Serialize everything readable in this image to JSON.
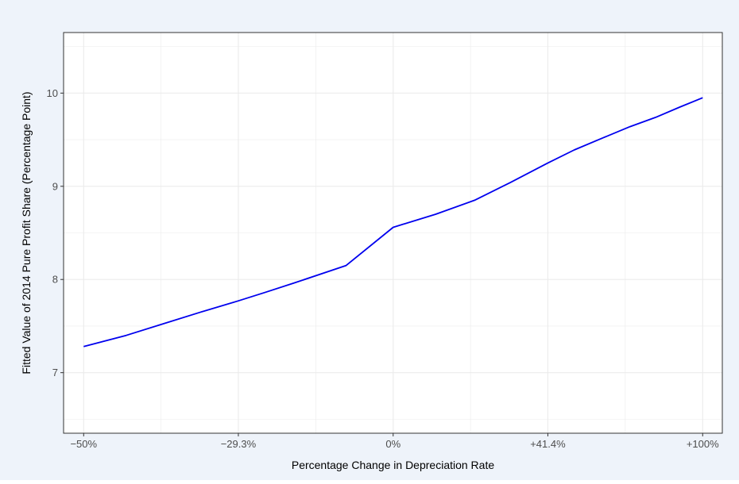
{
  "colors": {
    "background": "#eef3fa",
    "panel": "#ffffff",
    "grid": "#ebebeb",
    "line": "#0000ee",
    "text": "#4d4d4d",
    "axis_title": "#000000"
  },
  "chart_data": {
    "type": "line",
    "title": "",
    "xlabel": "Percentage Change in Depreciation Rate",
    "ylabel": "Fitted Value of 2014 Pure Profit Share (Percentage Point)",
    "x_scale": "log",
    "x_axis_quantity": "depreciation rate multiplier (1 + percentage change)",
    "xlim": [
      0.478,
      2.09
    ],
    "ylim": [
      6.35,
      10.65
    ],
    "x_ticks": [
      0.5,
      0.707,
      1.0,
      1.414,
      2.0
    ],
    "x_tick_labels": [
      "−50%",
      "−29.3%",
      "0%",
      "+41.4%",
      "+100%"
    ],
    "y_ticks": [
      7,
      8,
      9,
      10
    ],
    "y_tick_labels": [
      "7",
      "8",
      "9",
      "10"
    ],
    "grid": true,
    "legend": "none",
    "series": [
      {
        "x": [
          0.5,
          0.55,
          0.6,
          0.65,
          0.707,
          0.75,
          0.8,
          0.9,
          1.0,
          1.1,
          1.2,
          1.3,
          1.414,
          1.5,
          1.6,
          1.7,
          1.8,
          1.9,
          2.0
        ],
        "y": [
          7.28,
          7.4,
          7.53,
          7.65,
          7.77,
          7.86,
          7.96,
          8.15,
          8.56,
          8.7,
          8.85,
          9.04,
          9.25,
          9.39,
          9.52,
          9.64,
          9.74,
          9.85,
          9.95
        ]
      }
    ]
  }
}
